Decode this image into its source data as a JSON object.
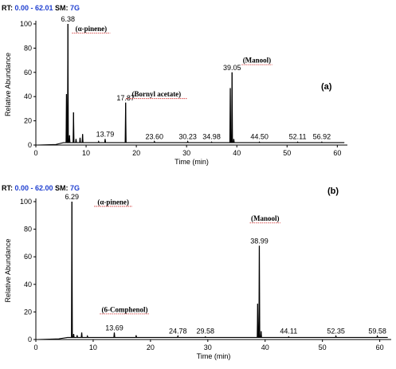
{
  "chart_data": [
    {
      "type": "line",
      "header": {
        "rt_label": "RT:",
        "rt_value": "0.00 - 62.01",
        "sm_label": "SM:",
        "sm_value": "7G"
      },
      "panel_tag": "(a)",
      "xlabel": "Time (min)",
      "ylabel": "Relative Abundance",
      "xlim": [
        0,
        62.01
      ],
      "ylim": [
        0,
        100
      ],
      "xticks": [
        0,
        10,
        20,
        30,
        40,
        50,
        60
      ],
      "yticks": [
        0,
        20,
        40,
        60,
        80,
        100
      ],
      "baseline": 2,
      "peaks": [
        {
          "x": 6.1,
          "y": 42
        },
        {
          "x": 6.38,
          "y": 100
        },
        {
          "x": 6.7,
          "y": 8
        },
        {
          "x": 7.5,
          "y": 27
        },
        {
          "x": 8.0,
          "y": 5
        },
        {
          "x": 8.8,
          "y": 6
        },
        {
          "x": 9.3,
          "y": 9
        },
        {
          "x": 12.5,
          "y": 3
        },
        {
          "x": 13.79,
          "y": 5
        },
        {
          "x": 17.87,
          "y": 35
        },
        {
          "x": 23.6,
          "y": 3
        },
        {
          "x": 30.23,
          "y": 3
        },
        {
          "x": 34.98,
          "y": 2.5
        },
        {
          "x": 38.7,
          "y": 47
        },
        {
          "x": 39.05,
          "y": 60
        },
        {
          "x": 39.4,
          "y": 5
        },
        {
          "x": 44.5,
          "y": 2.5
        },
        {
          "x": 52.11,
          "y": 2.5
        },
        {
          "x": 56.92,
          "y": 2.5
        }
      ],
      "peak_labels": [
        {
          "x": 6.38,
          "y": 100,
          "text": "6.38"
        },
        {
          "x": 13.79,
          "y": 5,
          "text": "13.79"
        },
        {
          "x": 17.87,
          "y": 35,
          "text": "17.87"
        },
        {
          "x": 23.6,
          "y": 3,
          "text": "23.60"
        },
        {
          "x": 30.23,
          "y": 3,
          "text": "30.23"
        },
        {
          "x": 34.98,
          "y": 3,
          "text": "34.98"
        },
        {
          "x": 39.05,
          "y": 60,
          "text": "39.05"
        },
        {
          "x": 44.5,
          "y": 3,
          "text": "44.50"
        },
        {
          "x": 52.11,
          "y": 3,
          "text": "52.11"
        },
        {
          "x": 56.92,
          "y": 3,
          "text": "56.92"
        }
      ],
      "annotations": [
        {
          "x": 11.0,
          "y": 94,
          "text": "(α-pinene)"
        },
        {
          "x": 24.0,
          "y": 40,
          "text": "(Bornyl acetate)"
        },
        {
          "x": 44.0,
          "y": 68,
          "text": "(Manool)"
        }
      ]
    },
    {
      "type": "line",
      "header": {
        "rt_label": "RT:",
        "rt_value": "0.00 - 62.00",
        "sm_label": "SM:",
        "sm_value": "7G"
      },
      "panel_tag": "(b)",
      "xlabel": "Time (min)",
      "ylabel": "Relative Abundance",
      "xlim": [
        0,
        62.0
      ],
      "ylim": [
        0,
        100
      ],
      "xticks": [
        0,
        10,
        20,
        30,
        40,
        50,
        60
      ],
      "yticks": [
        0,
        20,
        40,
        60,
        80,
        100
      ],
      "baseline": 1.5,
      "peaks": [
        {
          "x": 6.29,
          "y": 100
        },
        {
          "x": 6.6,
          "y": 4
        },
        {
          "x": 7.2,
          "y": 3
        },
        {
          "x": 8.0,
          "y": 5
        },
        {
          "x": 9.0,
          "y": 2.5
        },
        {
          "x": 13.69,
          "y": 5
        },
        {
          "x": 17.5,
          "y": 3
        },
        {
          "x": 24.78,
          "y": 2.5
        },
        {
          "x": 29.58,
          "y": 2
        },
        {
          "x": 38.7,
          "y": 26
        },
        {
          "x": 38.99,
          "y": 68
        },
        {
          "x": 39.3,
          "y": 6
        },
        {
          "x": 44.11,
          "y": 2
        },
        {
          "x": 52.35,
          "y": 2.5
        },
        {
          "x": 59.58,
          "y": 2.5
        }
      ],
      "peak_labels": [
        {
          "x": 6.29,
          "y": 100,
          "text": "6.29"
        },
        {
          "x": 13.69,
          "y": 5,
          "text": "13.69"
        },
        {
          "x": 24.78,
          "y": 2.5,
          "text": "24.78"
        },
        {
          "x": 29.58,
          "y": 2.5,
          "text": "29.58"
        },
        {
          "x": 38.99,
          "y": 68,
          "text": "38.99"
        },
        {
          "x": 44.11,
          "y": 2.5,
          "text": "44.11"
        },
        {
          "x": 52.35,
          "y": 2.5,
          "text": "52.35"
        },
        {
          "x": 59.58,
          "y": 2.5,
          "text": "59.58"
        }
      ],
      "annotations": [
        {
          "x": 13.5,
          "y": 98,
          "text": "(α-pinene)"
        },
        {
          "x": 40.0,
          "y": 86,
          "text": "(Manool)"
        },
        {
          "x": 15.5,
          "y": 20,
          "text": "(6-Comphenol)"
        }
      ]
    }
  ]
}
